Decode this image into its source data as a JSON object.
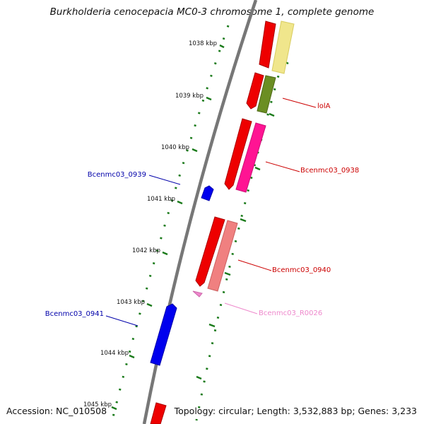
{
  "title": "Burkholderia cenocepacia MC0-3 chromosome 1, complete genome",
  "footer": {
    "accession_label": "Accession",
    "accession": "NC_010508",
    "topology_label": "Topology",
    "topology": "circular",
    "length_label": "Length",
    "length": "3,532,883 bp",
    "genes_label": "Genes",
    "genes": "3,233"
  },
  "colors": {
    "backbone": "#777777",
    "tick": "#1a7a1a",
    "forward_strand_label": "#cc0000",
    "reverse_strand_label": "#0000aa",
    "rna_label": "#ee88cc"
  },
  "ticks": [
    {
      "label": "1038 kbp"
    },
    {
      "label": "1039 kbp"
    },
    {
      "label": "1040 kbp"
    },
    {
      "label": "1041 kbp"
    },
    {
      "label": "1042 kbp"
    },
    {
      "label": "1043 kbp"
    },
    {
      "label": "1044 kbp"
    },
    {
      "label": "1045 kbp"
    }
  ],
  "gene_labels": [
    {
      "name": "lolA",
      "color": "#cc0000"
    },
    {
      "name": "Bcenmc03_0938",
      "color": "#cc0000"
    },
    {
      "name": "Bcenmc03_0939",
      "color": "#0000aa"
    },
    {
      "name": "Bcenmc03_0940",
      "color": "#cc0000"
    },
    {
      "name": "Bcenmc03_R0026",
      "color": "#ee88cc"
    },
    {
      "name": "Bcenmc03_0941",
      "color": "#0000aa"
    }
  ]
}
